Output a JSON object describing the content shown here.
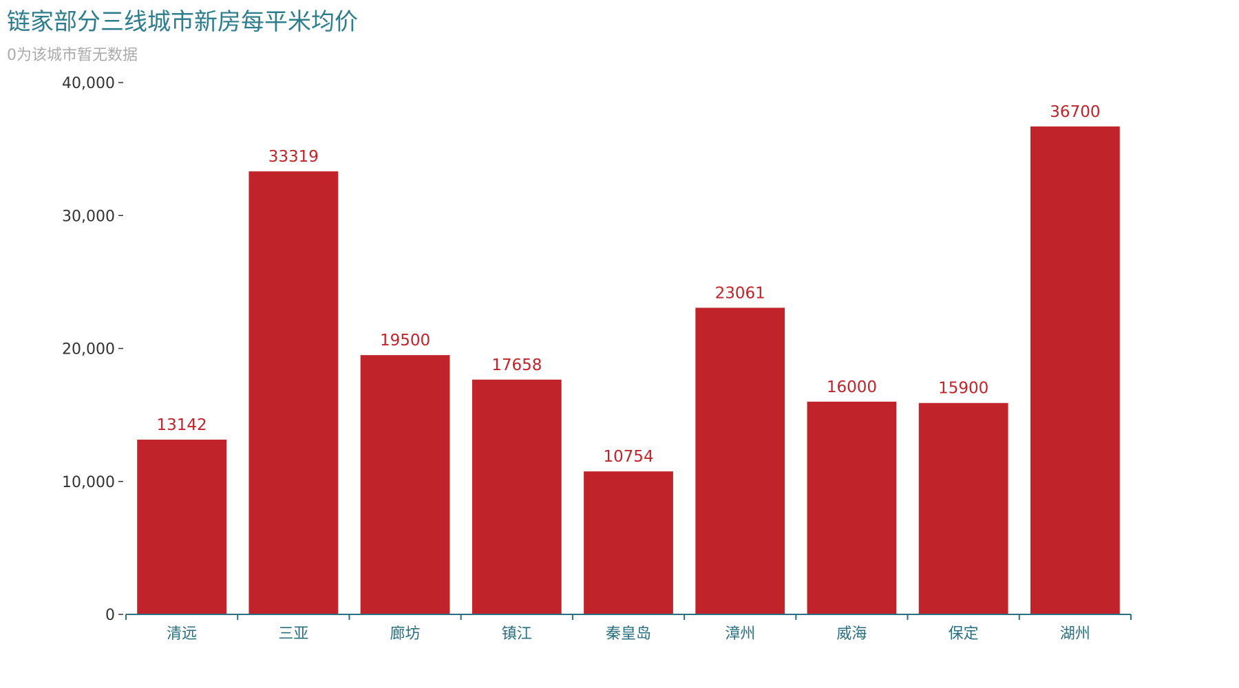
{
  "chart_data": {
    "type": "bar",
    "title": "链家部分三线城市新房每平米均价",
    "subtitle": "0为该城市暂无数据",
    "xlabel": "",
    "ylabel": "",
    "categories": [
      "清远",
      "三亚",
      "廊坊",
      "镇江",
      "秦皇岛",
      "漳州",
      "威海",
      "保定",
      "湖州"
    ],
    "series": [
      {
        "values": [
          13142,
          33319,
          19500,
          17658,
          10754,
          23061,
          16000,
          15900,
          36700
        ]
      }
    ],
    "data_labels": [
      "13142",
      "33319",
      "19500",
      "17658",
      "10754",
      "23061",
      "16000",
      "15900",
      "36700"
    ],
    "ylim": [
      0,
      40000
    ],
    "y_ticks": [
      0,
      10000,
      20000,
      30000,
      40000
    ],
    "y_tick_labels": [
      "0",
      "10,000",
      "20,000",
      "30,000",
      "40,000"
    ],
    "grid": false,
    "legend": "none",
    "colors": {
      "bar": "#c1232b",
      "title": "#2d7d8c",
      "subtitle": "#aaaaaa",
      "x_axis": "#2a6f7f",
      "y_axis_text": "#333333"
    }
  }
}
